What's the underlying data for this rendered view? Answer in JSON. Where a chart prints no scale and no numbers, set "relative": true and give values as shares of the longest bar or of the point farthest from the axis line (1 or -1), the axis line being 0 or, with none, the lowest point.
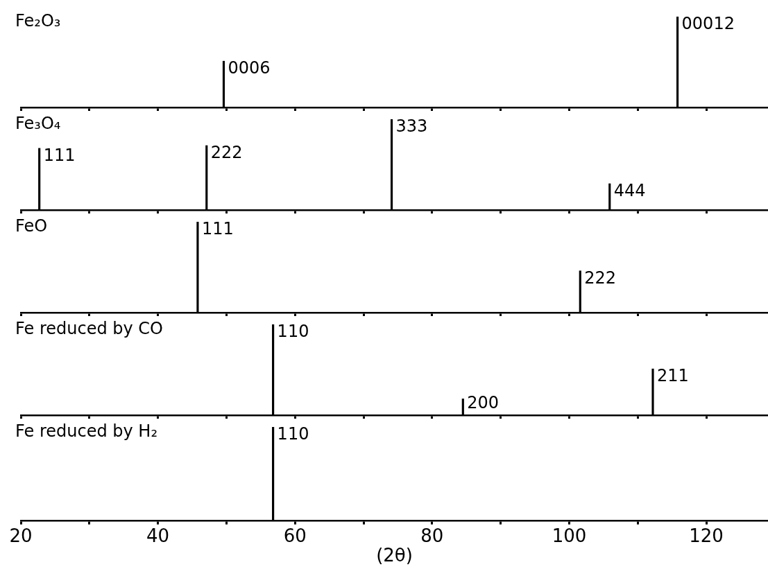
{
  "chart_data": [
    {
      "type": "bar",
      "title": "Fe₂O₃",
      "relative": true,
      "x": [
        49.6,
        115.8
      ],
      "values": [
        0.51,
        1
      ],
      "annotations": [
        {
          "text": "0006",
          "x": 49.6,
          "y": 0.51
        },
        {
          "text": "00012",
          "x": 115.8,
          "y": 1
        }
      ],
      "xlim": [
        20,
        129
      ],
      "xticks": [
        20,
        30,
        40,
        50,
        60,
        70,
        80,
        90,
        100,
        110,
        120
      ],
      "tick_labels": false,
      "grid": false
    },
    {
      "type": "bar",
      "title": "Fe₃O₄",
      "relative": true,
      "x": [
        22.7,
        47.1,
        74.1,
        105.9
      ],
      "values": [
        0.68,
        0.71,
        1,
        0.29
      ],
      "annotations": [
        {
          "text": "111",
          "x": 22.7,
          "y": 0.68
        },
        {
          "text": "222",
          "x": 47.1,
          "y": 0.71
        },
        {
          "text": "333",
          "x": 74.1,
          "y": 1
        },
        {
          "text": "444",
          "x": 105.9,
          "y": 0.29
        }
      ],
      "xlim": [
        20,
        129
      ],
      "xticks": [
        20,
        30,
        40,
        50,
        60,
        70,
        80,
        90,
        100,
        110,
        120
      ],
      "tick_labels": false,
      "grid": false
    },
    {
      "type": "bar",
      "title": "FeO",
      "relative": true,
      "x": [
        45.8,
        101.6
      ],
      "values": [
        1,
        0.46
      ],
      "annotations": [
        {
          "text": "111",
          "x": 45.8,
          "y": 1
        },
        {
          "text": "222",
          "x": 101.6,
          "y": 0.46
        }
      ],
      "xlim": [
        20,
        129
      ],
      "xticks": [
        20,
        30,
        40,
        50,
        60,
        70,
        80,
        90,
        100,
        110,
        120
      ],
      "tick_labels": false,
      "grid": false
    },
    {
      "type": "bar",
      "title": "Fe reduced by CO",
      "relative": true,
      "x": [
        56.8,
        84.5,
        112.2
      ],
      "values": [
        1,
        0.18,
        0.51
      ],
      "annotations": [
        {
          "text": "110",
          "x": 56.8,
          "y": 1
        },
        {
          "text": "200",
          "x": 84.5,
          "y": 0.18
        },
        {
          "text": "211",
          "x": 112.2,
          "y": 0.51
        }
      ],
      "xlim": [
        20,
        129
      ],
      "xticks": [
        20,
        30,
        40,
        50,
        60,
        70,
        80,
        90,
        100,
        110,
        120
      ],
      "tick_labels": false,
      "grid": false
    },
    {
      "type": "bar",
      "title": "Fe reduced by H₂",
      "xlabel": "(2θ)",
      "relative": true,
      "x": [
        56.8
      ],
      "values": [
        1
      ],
      "annotations": [
        {
          "text": "110",
          "x": 56.8,
          "y": 1
        }
      ],
      "xlim": [
        20,
        129
      ],
      "xticks": [
        20,
        {
          "value": 30,
          "label": null
        },
        40,
        {
          "value": 50,
          "label": null
        },
        60,
        {
          "value": 70,
          "label": null
        },
        80,
        {
          "value": 90,
          "label": null
        },
        100,
        {
          "value": 110,
          "label": null
        },
        120
      ],
      "tick_labels": "x",
      "grid": false
    }
  ]
}
